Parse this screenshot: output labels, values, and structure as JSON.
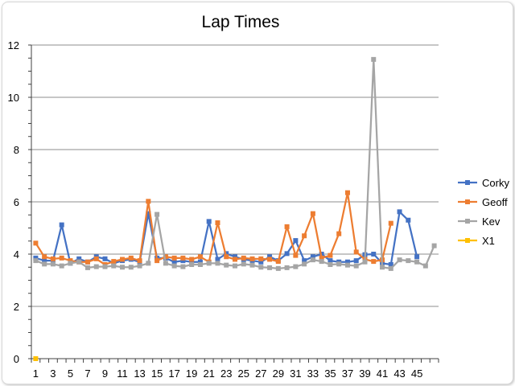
{
  "chart_data": {
    "type": "line",
    "title": "Lap Times",
    "xlabel": "",
    "ylabel": "",
    "ylim": [
      0,
      12
    ],
    "y_ticks": [
      0,
      2,
      4,
      6,
      8,
      10,
      12
    ],
    "x_tick_labels": [
      "1",
      "3",
      "5",
      "7",
      "9",
      "11",
      "13",
      "15",
      "17",
      "19",
      "21",
      "23",
      "25",
      "27",
      "29",
      "31",
      "33",
      "35",
      "37",
      "39",
      "41",
      "43",
      "45"
    ],
    "grid": true,
    "legend_position": "right",
    "series": [
      {
        "name": "Corky",
        "color": "#4472c4",
        "marker": "square",
        "values": [
          3.85,
          3.75,
          3.75,
          5.12,
          3.65,
          3.82,
          3.7,
          3.9,
          3.82,
          3.65,
          3.75,
          3.8,
          3.7,
          5.55,
          3.85,
          3.85,
          3.7,
          3.75,
          3.7,
          3.7,
          5.25,
          3.8,
          4.02,
          3.9,
          3.8,
          3.75,
          3.7,
          3.9,
          3.75,
          4.02,
          4.52,
          3.75,
          3.9,
          4.0,
          3.75,
          3.7,
          3.7,
          3.75,
          3.98,
          4.0,
          3.65,
          3.6,
          5.62,
          5.3,
          3.9,
          null,
          null
        ]
      },
      {
        "name": "Geoff",
        "color": "#ed7d31",
        "marker": "square",
        "values": [
          4.42,
          3.9,
          3.82,
          3.85,
          3.75,
          3.7,
          3.7,
          3.82,
          3.6,
          3.72,
          3.8,
          3.85,
          3.75,
          6.02,
          3.75,
          3.9,
          3.85,
          3.85,
          3.8,
          3.9,
          3.7,
          5.2,
          3.9,
          3.8,
          3.85,
          3.82,
          3.82,
          3.8,
          3.72,
          5.05,
          3.95,
          4.7,
          5.55,
          3.85,
          3.95,
          4.78,
          6.35,
          4.08,
          3.8,
          3.72,
          3.78,
          5.18,
          null,
          null,
          null,
          null,
          null
        ]
      },
      {
        "name": "Kev",
        "color": "#a5a5a5",
        "marker": "square",
        "values": [
          3.75,
          3.62,
          3.62,
          3.55,
          3.65,
          3.7,
          3.48,
          3.52,
          3.52,
          3.55,
          3.5,
          3.5,
          3.55,
          3.65,
          5.52,
          3.65,
          3.55,
          3.52,
          3.6,
          3.6,
          3.65,
          3.65,
          3.58,
          3.55,
          3.62,
          3.58,
          3.5,
          3.48,
          3.45,
          3.48,
          3.52,
          3.62,
          3.78,
          3.72,
          3.6,
          3.62,
          3.58,
          3.55,
          3.7,
          11.45,
          3.5,
          3.45,
          3.78,
          3.75,
          3.7,
          3.55,
          4.32
        ]
      },
      {
        "name": "X1",
        "color": "#ffc000",
        "marker": "square",
        "values": [
          0
        ]
      }
    ]
  }
}
